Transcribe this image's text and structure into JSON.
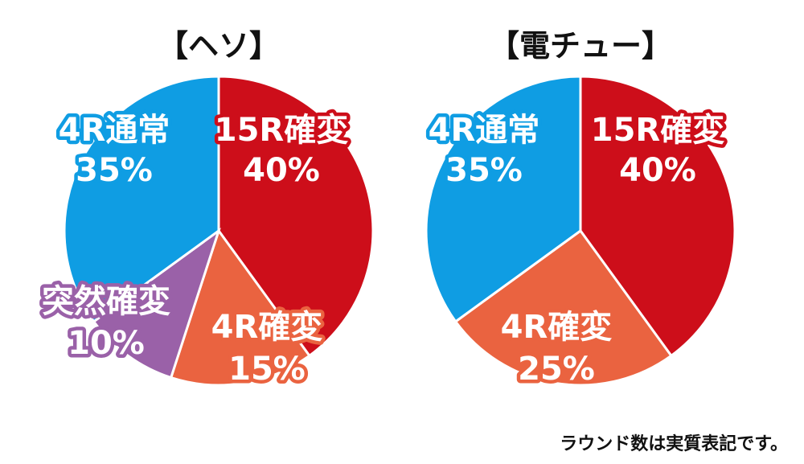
{
  "chart_data": [
    {
      "type": "pie",
      "title": "【ヘソ】",
      "slices": [
        {
          "label": "15R確変",
          "value": 40,
          "value_label": "40%",
          "color": "#cd0e1a"
        },
        {
          "label": "4R確変",
          "value": 15,
          "value_label": "15%",
          "color": "#ea6340"
        },
        {
          "label": "突然確変",
          "value": 10,
          "value_label": "10%",
          "color": "#9a61a8"
        },
        {
          "label": "4R通常",
          "value": 35,
          "value_label": "35%",
          "color": "#0f9de3"
        }
      ]
    },
    {
      "type": "pie",
      "title": "【電チュー】",
      "slices": [
        {
          "label": "15R確変",
          "value": 40,
          "value_label": "40%",
          "color": "#cd0e1a"
        },
        {
          "label": "4R確変",
          "value": 25,
          "value_label": "25%",
          "color": "#ea6340"
        },
        {
          "label": "4R通常",
          "value": 35,
          "value_label": "35%",
          "color": "#0f9de3"
        }
      ]
    }
  ],
  "footnote": "ラウンド数は実質表記です。"
}
